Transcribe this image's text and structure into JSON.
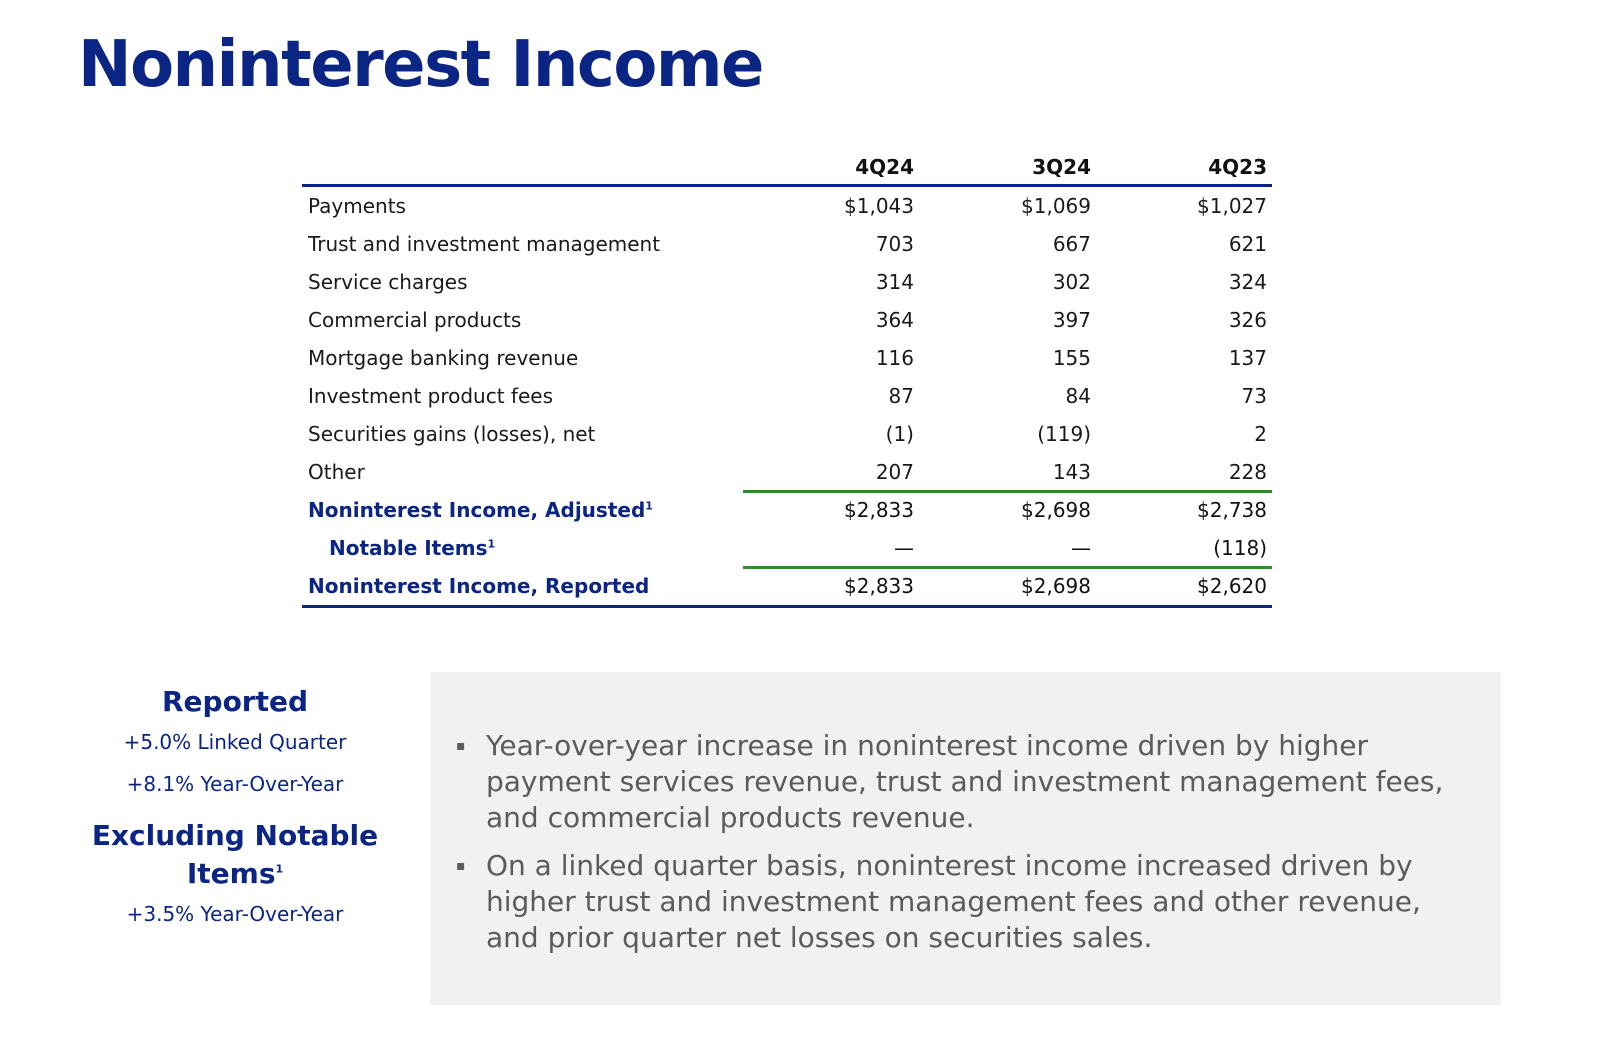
{
  "page": {
    "title": "Noninterest Income"
  },
  "table": {
    "headers": [
      "4Q24",
      "3Q24",
      "4Q23"
    ],
    "rows": [
      {
        "label": "Payments",
        "values": [
          "$1,043",
          "$1,069",
          "$1,027"
        ]
      },
      {
        "label": "Trust and investment management",
        "values": [
          "703",
          "667",
          "621"
        ]
      },
      {
        "label": "Service charges",
        "values": [
          "314",
          "302",
          "324"
        ]
      },
      {
        "label": "Commercial products",
        "values": [
          "364",
          "397",
          "326"
        ]
      },
      {
        "label": "Mortgage banking revenue",
        "values": [
          "116",
          "155",
          "137"
        ]
      },
      {
        "label": "Investment product fees",
        "values": [
          "87",
          "84",
          "73"
        ]
      },
      {
        "label": "Securities gains (losses), net",
        "values": [
          "(1)",
          "(119)",
          "2"
        ]
      },
      {
        "label": "Other",
        "values": [
          "207",
          "143",
          "228"
        ]
      }
    ],
    "adjusted": {
      "label": "Noninterest Income, Adjusted",
      "sup": "1",
      "values": [
        "$2,833",
        "$2,698",
        "$2,738"
      ]
    },
    "notable": {
      "label": "Notable Items",
      "sup": "1",
      "values": [
        "—",
        "—",
        "(118)"
      ]
    },
    "reported": {
      "label": "Noninterest Income, Reported",
      "values": [
        "$2,833",
        "$2,698",
        "$2,620"
      ]
    }
  },
  "stats": {
    "reported_heading": "Reported",
    "linked_quarter": "+5.0% Linked Quarter",
    "yoy": "+8.1% Year-Over-Year",
    "excluding_heading": "Excluding Notable",
    "excluding_heading2": "Items",
    "excluding_sup": "1",
    "excluding_yoy": "+3.5% Year-Over-Year"
  },
  "commentary": {
    "bullet_glyph": "▪",
    "bullets": [
      "Year-over-year increase in noninterest income driven by higher payment services revenue, trust and investment management fees, and commercial products revenue.",
      "On a linked quarter basis, noninterest income increased driven by higher trust and investment management fees and other revenue, and prior quarter net losses on securities sales."
    ]
  }
}
